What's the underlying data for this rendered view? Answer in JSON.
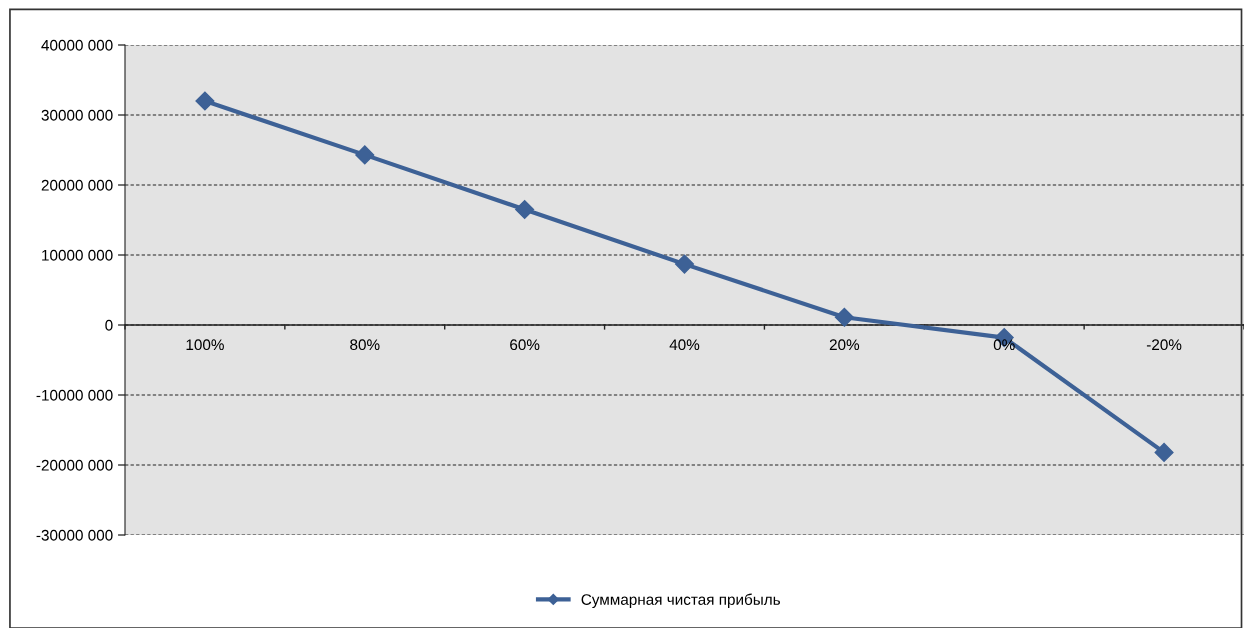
{
  "chart_data": {
    "type": "line",
    "categories": [
      "100%",
      "80%",
      "60%",
      "40%",
      "20%",
      "0%",
      "-20%"
    ],
    "series": [
      {
        "name": "Суммарная чистая прибыль",
        "color": "#3d6196",
        "values": [
          32000000,
          24300000,
          16500000,
          8700000,
          1100000,
          -1800000,
          -18200000
        ]
      }
    ],
    "ylim": [
      -30000000,
      40000000
    ],
    "yticks": [
      {
        "value": -30000000,
        "label": "-30000 000"
      },
      {
        "value": -20000000,
        "label": "-20000 000"
      },
      {
        "value": -10000000,
        "label": "-10000 000"
      },
      {
        "value": 0,
        "label": "0"
      },
      {
        "value": 10000000,
        "label": "10000 000"
      },
      {
        "value": 20000000,
        "label": "20000 000"
      },
      {
        "value": 30000000,
        "label": "30000 000"
      },
      {
        "value": 40000000,
        "label": "40000 000"
      }
    ],
    "grid": "y",
    "legend": "bottom",
    "marker": "diamond",
    "line_style": "solid"
  }
}
